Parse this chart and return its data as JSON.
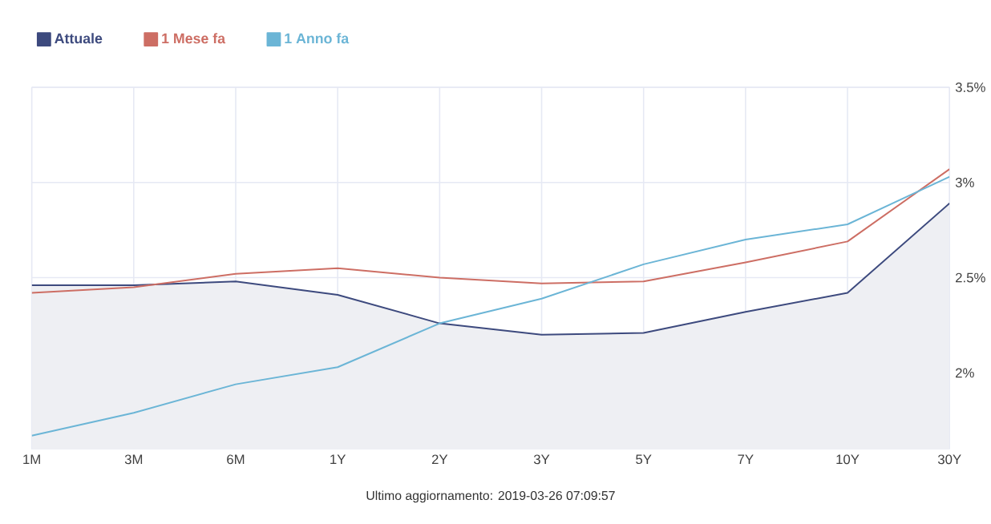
{
  "chart_data": {
    "type": "line",
    "categories": [
      "1M",
      "3M",
      "6M",
      "1Y",
      "2Y",
      "3Y",
      "5Y",
      "7Y",
      "10Y",
      "30Y"
    ],
    "series": [
      {
        "name": "Attuale",
        "type": "area",
        "color": "#3d4a7e",
        "values": [
          2.46,
          2.46,
          2.48,
          2.41,
          2.26,
          2.2,
          2.21,
          2.32,
          2.42,
          2.89
        ]
      },
      {
        "name": "1 Mese fa",
        "color": "#cd6e64",
        "values": [
          2.42,
          2.45,
          2.52,
          2.55,
          2.5,
          2.47,
          2.48,
          2.58,
          2.69,
          3.07
        ]
      },
      {
        "name": "1 Anno fa",
        "color": "#6bb5d6",
        "values": [
          1.67,
          1.79,
          1.94,
          2.03,
          2.26,
          2.39,
          2.57,
          2.7,
          2.78,
          3.03
        ]
      }
    ],
    "ylim": [
      1.6,
      3.5
    ],
    "yticks": [
      {
        "value": 2,
        "label": "2%"
      },
      {
        "value": 2.5,
        "label": "2.5%"
      },
      {
        "value": 3,
        "label": "3%"
      },
      {
        "value": 3.5,
        "label": "3.5%"
      }
    ],
    "grid": true,
    "legend": "top left",
    "annotations": [
      "Ultimo aggiornamento: 2019-03-26 07:09:57"
    ]
  }
}
